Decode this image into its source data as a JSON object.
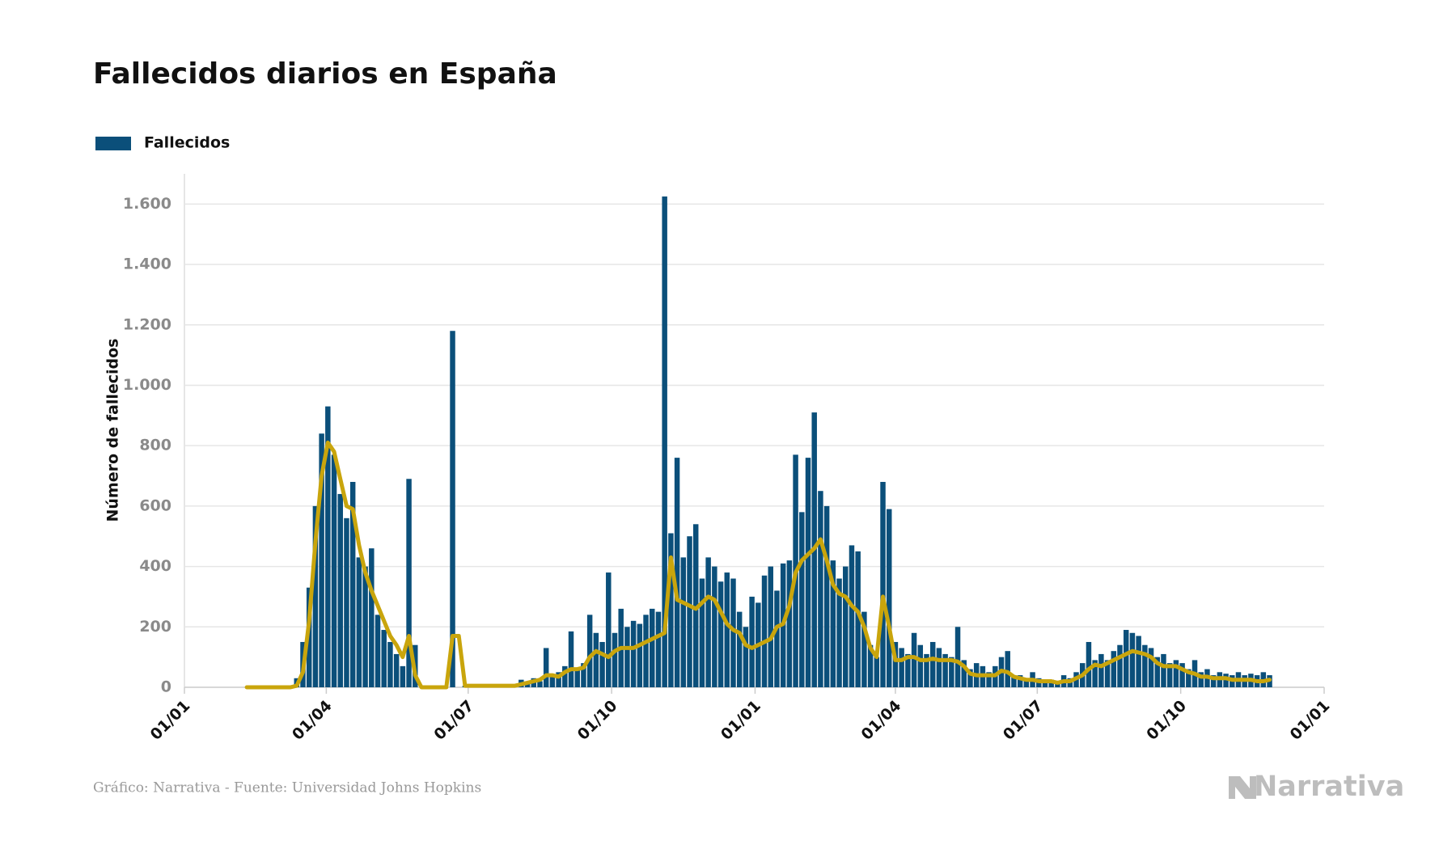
{
  "chart_data": {
    "type": "bar",
    "title": "Fallecidos diarios en España",
    "ylabel": "Número de fallecidos",
    "source": "Gráfico: Narrativa - Fuente: Universidad Johns Hopkins",
    "brand": "Narrativa",
    "grid": true,
    "legend": "top-left",
    "xlim": [
      0,
      731
    ],
    "xticks": [
      {
        "value": 0,
        "label": "01/01"
      },
      {
        "value": 91,
        "label": "01/04"
      },
      {
        "value": 182,
        "label": "01/07"
      },
      {
        "value": 274,
        "label": "01/10"
      },
      {
        "value": 366,
        "label": "01/01"
      },
      {
        "value": 456,
        "label": "01/04"
      },
      {
        "value": 547,
        "label": "01/07"
      },
      {
        "value": 639,
        "label": "01/10"
      },
      {
        "value": 731,
        "label": "01/01"
      }
    ],
    "ylim": [
      0,
      1700
    ],
    "yticks": [
      0,
      200,
      400,
      600,
      800,
      {
        "value": 1000,
        "label": "1.000"
      },
      {
        "value": 1200,
        "label": "1.200"
      },
      {
        "value": 1400,
        "label": "1.400"
      },
      {
        "value": 1600,
        "label": "1.600"
      }
    ],
    "x": [
      40,
      44,
      48,
      52,
      56,
      60,
      64,
      68,
      72,
      76,
      80,
      84,
      88,
      92,
      96,
      100,
      104,
      108,
      112,
      116,
      120,
      124,
      128,
      132,
      136,
      140,
      144,
      148,
      152,
      156,
      160,
      164,
      168,
      172,
      176,
      180,
      184,
      188,
      192,
      196,
      200,
      204,
      208,
      212,
      216,
      220,
      224,
      228,
      232,
      236,
      240,
      244,
      248,
      252,
      256,
      260,
      264,
      268,
      272,
      276,
      280,
      284,
      288,
      292,
      296,
      300,
      304,
      308,
      312,
      316,
      320,
      324,
      328,
      332,
      336,
      340,
      344,
      348,
      352,
      356,
      360,
      364,
      368,
      372,
      376,
      380,
      384,
      388,
      392,
      396,
      400,
      404,
      408,
      412,
      416,
      420,
      424,
      428,
      432,
      436,
      440,
      444,
      448,
      452,
      456,
      460,
      464,
      468,
      472,
      476,
      480,
      484,
      488,
      492,
      496,
      500,
      504,
      508,
      512,
      516,
      520,
      524,
      528,
      532,
      536,
      540,
      544,
      548,
      552,
      556,
      560,
      564,
      568,
      572,
      576,
      580,
      584,
      588,
      592,
      596,
      600,
      604,
      608,
      612,
      616,
      620,
      624,
      628,
      632,
      636,
      640,
      644,
      648,
      652,
      656,
      660,
      664,
      668,
      672,
      676,
      680,
      684,
      688,
      692,
      696
    ],
    "series": [
      {
        "name": "Fallecidos",
        "type": "bar",
        "color": "#0b4f7a",
        "values": [
          0,
          0,
          0,
          0,
          0,
          0,
          0,
          5,
          30,
          150,
          330,
          600,
          840,
          930,
          770,
          640,
          560,
          680,
          430,
          400,
          460,
          240,
          190,
          150,
          110,
          70,
          690,
          140,
          0,
          0,
          0,
          0,
          0,
          1180,
          0,
          5,
          5,
          5,
          5,
          5,
          5,
          5,
          5,
          5,
          25,
          20,
          30,
          20,
          130,
          40,
          50,
          70,
          185,
          60,
          80,
          240,
          180,
          150,
          380,
          180,
          260,
          200,
          220,
          210,
          240,
          260,
          250,
          1625,
          510,
          760,
          430,
          500,
          540,
          360,
          430,
          400,
          350,
          380,
          360,
          250,
          200,
          300,
          280,
          370,
          400,
          320,
          410,
          420,
          770,
          580,
          760,
          910,
          650,
          600,
          420,
          360,
          400,
          470,
          450,
          250,
          140,
          100,
          680,
          590,
          150,
          130,
          110,
          180,
          140,
          110,
          150,
          130,
          110,
          100,
          200,
          90,
          60,
          80,
          70,
          50,
          70,
          100,
          120,
          40,
          40,
          30,
          50,
          30,
          20,
          25,
          20,
          40,
          30,
          50,
          80,
          150,
          90,
          110,
          90,
          120,
          140,
          190,
          180,
          170,
          140,
          130,
          100,
          110,
          80,
          90,
          80,
          60,
          90,
          50,
          60,
          40,
          50,
          45,
          40,
          50,
          40,
          45,
          40,
          50,
          40
        ]
      },
      {
        "type": "line",
        "color": "#c9a50c",
        "values": [
          0,
          0,
          0,
          0,
          0,
          0,
          0,
          0,
          5,
          50,
          220,
          480,
          700,
          810,
          780,
          690,
          600,
          590,
          470,
          380,
          320,
          270,
          220,
          170,
          140,
          100,
          170,
          40,
          0,
          0,
          0,
          0,
          0,
          170,
          170,
          5,
          5,
          5,
          5,
          5,
          5,
          5,
          5,
          5,
          10,
          15,
          20,
          25,
          40,
          40,
          35,
          50,
          60,
          60,
          65,
          100,
          120,
          110,
          100,
          120,
          130,
          130,
          130,
          140,
          150,
          160,
          170,
          180,
          430,
          290,
          280,
          270,
          260,
          280,
          300,
          290,
          250,
          210,
          190,
          180,
          140,
          130,
          140,
          150,
          160,
          200,
          210,
          270,
          380,
          420,
          440,
          460,
          490,
          420,
          340,
          310,
          300,
          270,
          250,
          200,
          130,
          100,
          300,
          200,
          90,
          90,
          100,
          100,
          90,
          90,
          95,
          90,
          90,
          90,
          85,
          70,
          45,
          40,
          40,
          40,
          40,
          55,
          50,
          35,
          30,
          25,
          25,
          20,
          20,
          20,
          15,
          20,
          20,
          30,
          40,
          60,
          75,
          70,
          80,
          90,
          100,
          110,
          120,
          115,
          110,
          100,
          80,
          70,
          70,
          70,
          60,
          50,
          45,
          35,
          35,
          30,
          30,
          30,
          25,
          25,
          25,
          25,
          20,
          20,
          25
        ]
      }
    ]
  }
}
